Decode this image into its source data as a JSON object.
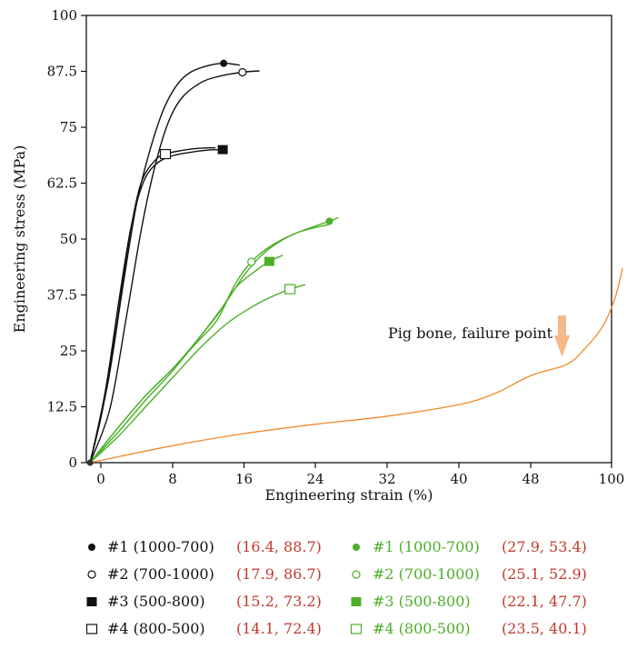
{
  "chart_data": {
    "type": "line",
    "xlabel": "Engineering strain (%)",
    "ylabel": "Engineering stress (MPa)",
    "x_tick_labels": [
      "0",
      "8",
      "16",
      "24",
      "32",
      "40",
      "48",
      "100"
    ],
    "y_tick_labels": [
      "0",
      "12.5",
      "25",
      "37.5",
      "50",
      "62.5",
      "75",
      "87.5",
      "100"
    ],
    "ylim": [
      0,
      100
    ],
    "grid": false,
    "colors": {
      "black": "#111111",
      "green": "#4caf28",
      "orange": "#f08a2a",
      "red": "#c0392b",
      "arrow": "#f6b98a"
    },
    "annotation": "Pig bone, failure point",
    "series": [
      {
        "name": "#1 (1000-700)",
        "group": "black",
        "marker": "filled-circle",
        "value_label": "(16.4, 88.7)",
        "marker_point": [
          13.7,
          89.3
        ],
        "points": [
          [
            -1.2,
            0
          ],
          [
            0.8,
            18
          ],
          [
            2.5,
            40
          ],
          [
            4,
            58
          ],
          [
            5.5,
            70
          ],
          [
            7,
            79
          ],
          [
            8.5,
            84.5
          ],
          [
            10,
            87.3
          ],
          [
            12,
            88.8
          ],
          [
            13.7,
            89.3
          ],
          [
            15.5,
            88.9
          ]
        ]
      },
      {
        "name": "#2 (700-1000)",
        "group": "black",
        "marker": "open-circle",
        "value_label": "(17.9, 86.7)",
        "marker_point": [
          15.8,
          87.3
        ],
        "points": [
          [
            -1.2,
            0
          ],
          [
            1,
            12
          ],
          [
            2.8,
            32
          ],
          [
            4.5,
            52
          ],
          [
            6,
            66
          ],
          [
            7.5,
            76
          ],
          [
            9,
            81.5
          ],
          [
            11,
            84.8
          ],
          [
            13,
            86.3
          ],
          [
            15.8,
            87.3
          ],
          [
            17.7,
            87.6
          ]
        ]
      },
      {
        "name": "#3 (500-800)",
        "group": "black",
        "marker": "filled-square",
        "value_label": "(15.2, 73.2)",
        "marker_point": [
          13.6,
          70
        ],
        "points": [
          [
            -1.2,
            0
          ],
          [
            0.5,
            16
          ],
          [
            2,
            36
          ],
          [
            3.3,
            52
          ],
          [
            4.6,
            62
          ],
          [
            6,
            66.5
          ],
          [
            7.8,
            68.5
          ],
          [
            10,
            69.4
          ],
          [
            12,
            69.9
          ],
          [
            13.6,
            70
          ]
        ]
      },
      {
        "name": "#4 (800-500)",
        "group": "black",
        "marker": "open-square",
        "value_label": "(14.1, 72.4)",
        "marker_point": [
          7.2,
          69
        ],
        "points": [
          [
            -1.2,
            0
          ],
          [
            0.2,
            12
          ],
          [
            1.7,
            30
          ],
          [
            3,
            48
          ],
          [
            4.4,
            62
          ],
          [
            6,
            67.5
          ],
          [
            7.2,
            69
          ],
          [
            9,
            69.8
          ],
          [
            11,
            70.3
          ],
          [
            12.8,
            70.4
          ]
        ]
      },
      {
        "name": "#1 (1000-700)",
        "group": "green",
        "marker": "filled-circle",
        "value_label": "(27.9, 53.4)",
        "marker_point": [
          25.5,
          54
        ],
        "points": [
          [
            -1.2,
            0
          ],
          [
            2,
            8
          ],
          [
            5,
            15
          ],
          [
            8,
            21
          ],
          [
            11,
            28
          ],
          [
            14,
            36
          ],
          [
            16,
            42
          ],
          [
            18,
            46.5
          ],
          [
            20,
            49.5
          ],
          [
            22,
            51.5
          ],
          [
            25.5,
            54
          ],
          [
            26.5,
            54.8
          ]
        ]
      },
      {
        "name": "#2 (700-1000)",
        "group": "green",
        "marker": "open-circle",
        "value_label": "(25.1, 52.9)",
        "marker_point": [
          16.8,
          44.9
        ],
        "points": [
          [
            -1.2,
            0
          ],
          [
            2,
            8
          ],
          [
            5,
            15
          ],
          [
            8,
            21
          ],
          [
            11,
            27.5
          ],
          [
            13,
            32
          ],
          [
            15,
            40
          ],
          [
            16.8,
            44.9
          ],
          [
            19,
            48.5
          ],
          [
            22,
            51.5
          ],
          [
            25.5,
            53.3
          ]
        ]
      },
      {
        "name": "#3 (500-800)",
        "group": "green",
        "marker": "filled-square",
        "value_label": "(22.1, 47.7)",
        "marker_point": [
          18.8,
          45
        ],
        "points": [
          [
            -1.2,
            0
          ],
          [
            2,
            7
          ],
          [
            5,
            14
          ],
          [
            8,
            20.5
          ],
          [
            11,
            28
          ],
          [
            13,
            33
          ],
          [
            15,
            39
          ],
          [
            17,
            42.5
          ],
          [
            18.8,
            45
          ],
          [
            20.3,
            46.4
          ]
        ]
      },
      {
        "name": "#4 (800-500)",
        "group": "green",
        "marker": "open-square",
        "value_label": "(23.5, 40.1)",
        "marker_point": [
          21.1,
          38.8
        ],
        "points": [
          [
            -1.2,
            0
          ],
          [
            2,
            6
          ],
          [
            5,
            12.5
          ],
          [
            8,
            19
          ],
          [
            11,
            25.5
          ],
          [
            14,
            31
          ],
          [
            17,
            35
          ],
          [
            19.5,
            37.5
          ],
          [
            21.1,
            38.8
          ],
          [
            22.8,
            39.8
          ]
        ]
      },
      {
        "group": "orange",
        "marker": "none",
        "points": [
          [
            -1.2,
            0
          ],
          [
            8,
            3.8
          ],
          [
            16,
            6.5
          ],
          [
            24,
            8.6
          ],
          [
            32,
            10.4
          ],
          [
            40,
            13
          ],
          [
            44,
            15.5
          ],
          [
            48,
            19.5
          ],
          [
            52,
            22
          ],
          [
            54,
            25.5
          ],
          [
            56,
            30.5
          ],
          [
            57.4,
            37
          ],
          [
            58.2,
            43.5
          ]
        ]
      }
    ]
  }
}
